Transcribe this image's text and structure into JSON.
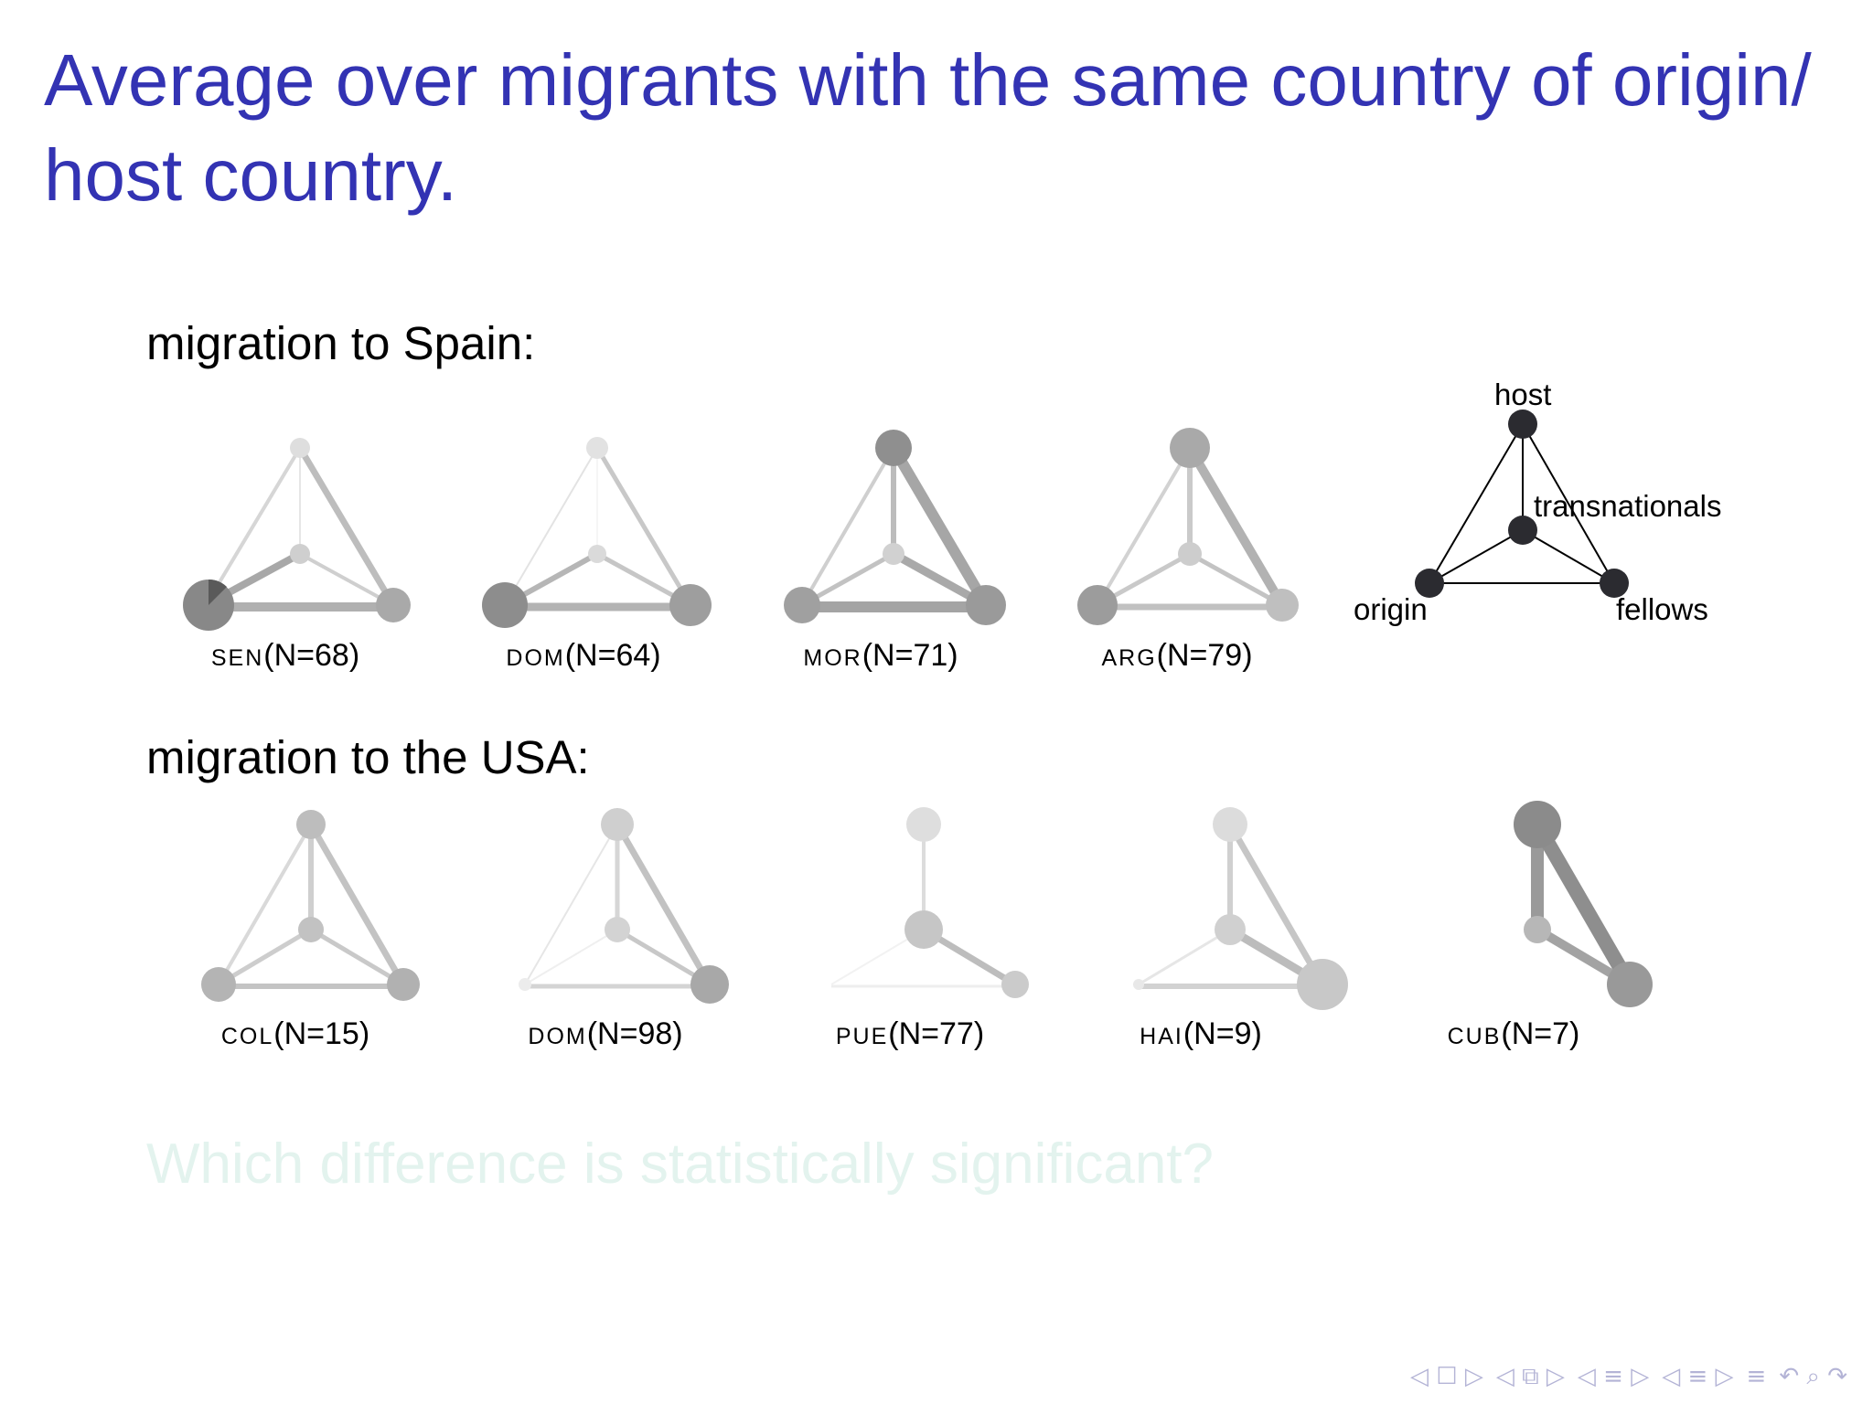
{
  "title": "Average over migrants with the same country of origin/ host country.",
  "spain": {
    "heading": "migration to Spain:",
    "networks": [
      {
        "code": "SEN",
        "n": "(N=68)"
      },
      {
        "code": "DOM",
        "n": "(N=64)"
      },
      {
        "code": "MOR",
        "n": "(N=71)"
      },
      {
        "code": "ARG",
        "n": "(N=79)"
      }
    ]
  },
  "usa": {
    "heading": "migration to the USA:",
    "networks": [
      {
        "code": "COL",
        "n": "(N=15)"
      },
      {
        "code": "DOM",
        "n": "(N=98)"
      },
      {
        "code": "PUE",
        "n": "(N=77)"
      },
      {
        "code": "HAI",
        "n": "(N=9)"
      },
      {
        "code": "CUB",
        "n": "(N=7)"
      }
    ]
  },
  "legend": {
    "host": "host",
    "transnationals": "transnationals",
    "origin": "origin",
    "fellows": "fellows"
  },
  "question": "Which difference is statistically significant?",
  "nav_icons": [
    "nav-prev-icon",
    "nav-frame-icon",
    "nav-next-icon",
    "nav-section-icon",
    "nav-align-icon",
    "nav-search-icon",
    "nav-refresh-icon"
  ]
}
